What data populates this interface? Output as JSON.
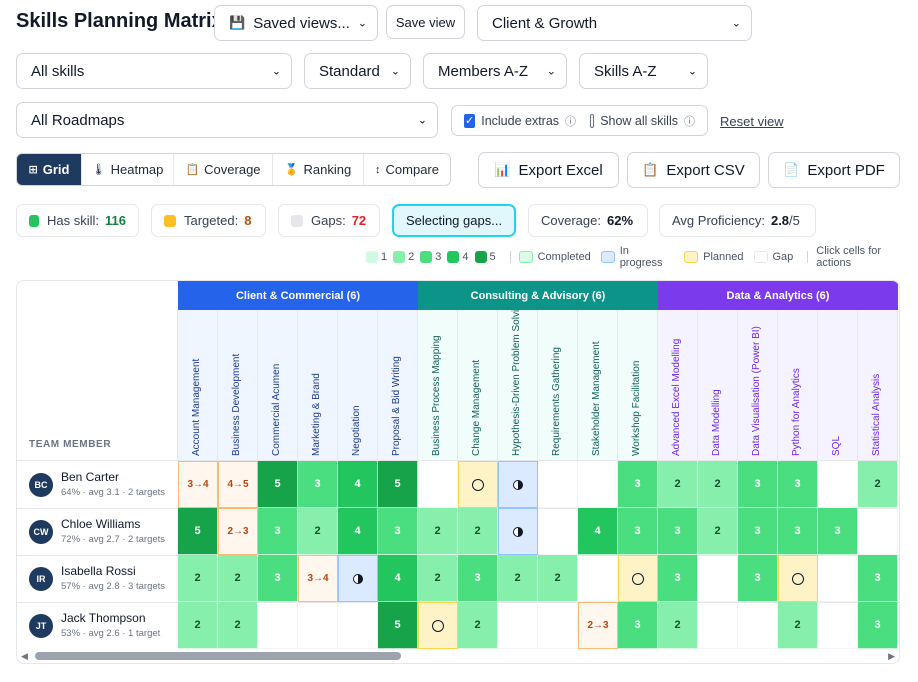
{
  "title": "Skills Planning Matrix",
  "toolbar": {
    "saved_views": "Saved views...",
    "save_view": "Save view",
    "team_select": "Client & Growth",
    "skills_filter": "All skills",
    "view_mode": "Standard",
    "member_sort": "Members A-Z",
    "skill_sort": "Skills A-Z",
    "roadmaps": "All Roadmaps",
    "include_extras": "Include extras",
    "show_all_skills": "Show all skills",
    "reset_view": "Reset view"
  },
  "tabs": [
    {
      "label": "Grid",
      "icon": "⊞",
      "active": true
    },
    {
      "label": "Heatmap",
      "icon": "🌡",
      "active": false
    },
    {
      "label": "Coverage",
      "icon": "📋",
      "active": false
    },
    {
      "label": "Ranking",
      "icon": "🏅",
      "active": false
    },
    {
      "label": "Compare",
      "icon": "↕",
      "active": false
    }
  ],
  "exports": [
    {
      "label": "Export Excel",
      "icon": "📊"
    },
    {
      "label": "Export CSV",
      "icon": "📋"
    },
    {
      "label": "Export PDF",
      "icon": "📄"
    }
  ],
  "stats": {
    "has_skill_label": "Has skill:",
    "has_skill_value": "116",
    "targeted_label": "Targeted:",
    "targeted_value": "8",
    "gaps_label": "Gaps:",
    "gaps_value": "72",
    "selecting": "Selecting gaps...",
    "coverage_label": "Coverage:",
    "coverage_value": "62%",
    "proficiency_label": "Avg Proficiency:",
    "proficiency_value": "2.8",
    "proficiency_max": "/5"
  },
  "legend": {
    "levels": [
      "1",
      "2",
      "3",
      "4",
      "5"
    ],
    "completed": "Completed",
    "in_progress": "In progress",
    "planned": "Planned",
    "gap": "Gap",
    "hint": "Click cells for actions"
  },
  "grid": {
    "team_member_header": "TEAM MEMBER",
    "categories": [
      {
        "label": "Client & Commercial (6)",
        "color": "#2563eb",
        "text_color": "#1e3a8a",
        "tint": "#eff6ff"
      },
      {
        "label": "Consulting & Advisory (6)",
        "color": "#0d9488",
        "text_color": "#115e59",
        "tint": "#f0fdfa"
      },
      {
        "label": "Data & Analytics (6)",
        "color": "#7c3aed",
        "text_color": "#6d28d9",
        "tint": "#f5f3ff"
      }
    ],
    "skills": [
      {
        "name": "Account Management",
        "cat": 0
      },
      {
        "name": "Business Development",
        "cat": 0
      },
      {
        "name": "Commercial Acumen",
        "cat": 0
      },
      {
        "name": "Marketing & Brand",
        "cat": 0
      },
      {
        "name": "Negotiation",
        "cat": 0
      },
      {
        "name": "Proposal & Bid Writing",
        "cat": 0
      },
      {
        "name": "Business Process Mapping",
        "cat": 1
      },
      {
        "name": "Change Management",
        "cat": 1
      },
      {
        "name": "Hypothesis-Driven Problem Solving",
        "cat": 1
      },
      {
        "name": "Requirements Gathering",
        "cat": 1
      },
      {
        "name": "Stakeholder Management",
        "cat": 1
      },
      {
        "name": "Workshop Facilitation",
        "cat": 1
      },
      {
        "name": "Advanced Excel Modelling",
        "cat": 2
      },
      {
        "name": "Data Modelling",
        "cat": 2
      },
      {
        "name": "Data Visualisation (Power BI)",
        "cat": 2
      },
      {
        "name": "Python for Analytics",
        "cat": 2
      },
      {
        "name": "SQL",
        "cat": 2
      },
      {
        "name": "Statistical Analysis",
        "cat": 2
      }
    ],
    "members": [
      {
        "initials": "BC",
        "name": "Ben Carter",
        "summary": "64% · avg 3.1 · 2 targets",
        "cells": [
          "t:3→4",
          "t:4→5",
          "5",
          "3",
          "4",
          "5",
          "",
          "planned",
          "inprog",
          "",
          "",
          "3",
          "2",
          "2",
          "3",
          "3",
          "",
          "2"
        ]
      },
      {
        "initials": "CW",
        "name": "Chloe Williams",
        "summary": "72% · avg 2.7 · 2 targets",
        "cells": [
          "5",
          "t:2→3",
          "3",
          "2",
          "4",
          "3",
          "2",
          "2",
          "inprog",
          "",
          "4",
          "3",
          "3",
          "2",
          "3",
          "3",
          "3",
          ""
        ]
      },
      {
        "initials": "IR",
        "name": "Isabella Rossi",
        "summary": "57% · avg 2.8 · 3 targets",
        "cells": [
          "2",
          "2",
          "3",
          "t:3→4",
          "inprog",
          "4",
          "2",
          "3",
          "2",
          "2",
          "",
          "planned",
          "3",
          "",
          "3",
          "planned",
          "",
          "3"
        ]
      },
      {
        "initials": "JT",
        "name": "Jack Thompson",
        "summary": "53% · avg 2.6 · 1 target",
        "cells": [
          "2",
          "2",
          "",
          "",
          "",
          "5",
          "planned",
          "2",
          "",
          "",
          "t:2→3",
          "3",
          "2",
          "",
          "",
          "2",
          "",
          "3"
        ]
      }
    ]
  }
}
